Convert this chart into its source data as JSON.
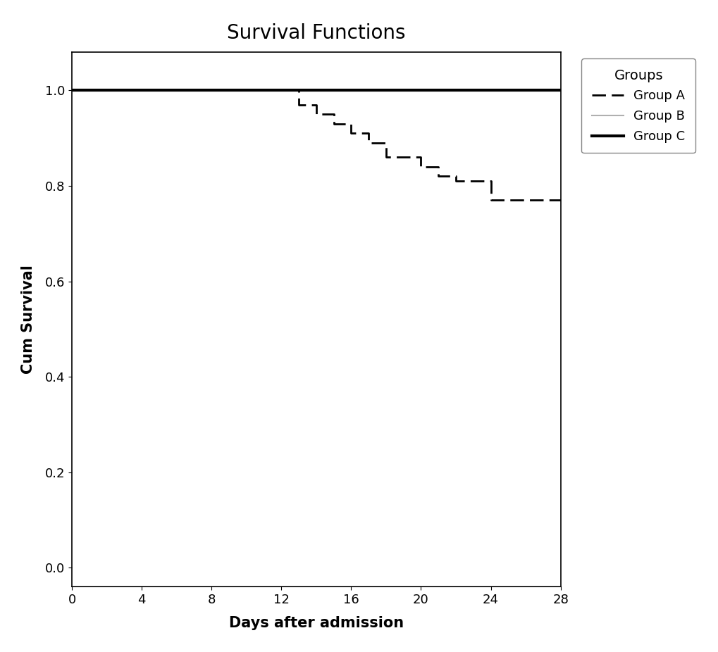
{
  "title": "Survival Functions",
  "xlabel": "Days after admission",
  "ylabel": "Cum Survival",
  "xlim": [
    0,
    28
  ],
  "ylim": [
    -0.04,
    1.08
  ],
  "xticks": [
    0,
    4,
    8,
    12,
    16,
    20,
    24,
    28
  ],
  "yticks": [
    0.0,
    0.2,
    0.4,
    0.6,
    0.8,
    1.0
  ],
  "legend_title": "Groups",
  "group_A": {
    "label": "Group A",
    "color": "#000000",
    "linewidth": 2.0,
    "x": [
      0,
      13,
      13,
      14,
      14,
      15,
      15,
      16,
      16,
      17,
      17,
      18,
      18,
      20,
      20,
      21,
      21,
      22,
      22,
      24,
      24,
      25,
      25,
      26,
      26,
      28
    ],
    "y": [
      1.0,
      1.0,
      0.97,
      0.97,
      0.95,
      0.95,
      0.93,
      0.93,
      0.91,
      0.91,
      0.89,
      0.89,
      0.86,
      0.86,
      0.84,
      0.84,
      0.82,
      0.82,
      0.81,
      0.81,
      0.77,
      0.77,
      0.77,
      0.77,
      0.77,
      0.77
    ]
  },
  "group_B": {
    "label": "Group B",
    "color": "#b0b0b0",
    "linewidth": 1.5,
    "x": [
      0,
      28
    ],
    "y": [
      1.0,
      1.0
    ]
  },
  "group_C": {
    "label": "Group C",
    "color": "#000000",
    "linewidth": 3.0,
    "x": [
      0,
      28
    ],
    "y": [
      1.0,
      1.0
    ]
  },
  "background_color": "#ffffff",
  "title_fontsize": 20,
  "axis_label_fontsize": 15,
  "tick_fontsize": 13,
  "legend_fontsize": 13,
  "legend_title_fontsize": 14
}
